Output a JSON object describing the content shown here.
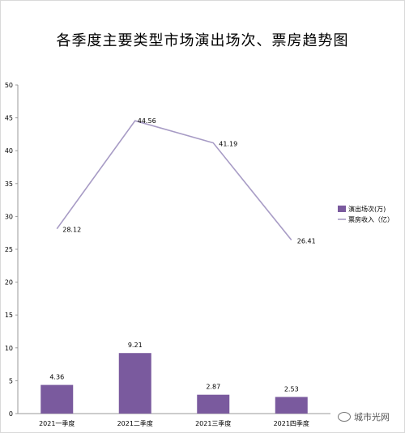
{
  "chart_data": {
    "type": "bar",
    "title": "各季度主要类型市场演出场次、票房趋势图",
    "categories": [
      "2021一季度",
      "2021二季度",
      "2021三季度",
      "2021四季度"
    ],
    "ylim": [
      0,
      50
    ],
    "yticks": [
      0,
      5,
      10,
      15,
      20,
      25,
      30,
      35,
      40,
      45,
      50
    ],
    "series": [
      {
        "name": "演出场次(万)",
        "kind": "bar",
        "color": "#7a5a9e",
        "values": [
          4.36,
          9.21,
          2.87,
          2.53
        ]
      },
      {
        "name": "票房收入（亿）",
        "kind": "line",
        "color": "#a79bc5",
        "values": [
          28.12,
          44.56,
          41.19,
          26.41
        ]
      }
    ],
    "legend_position": "right",
    "grid": false
  },
  "watermark": "城市光网"
}
